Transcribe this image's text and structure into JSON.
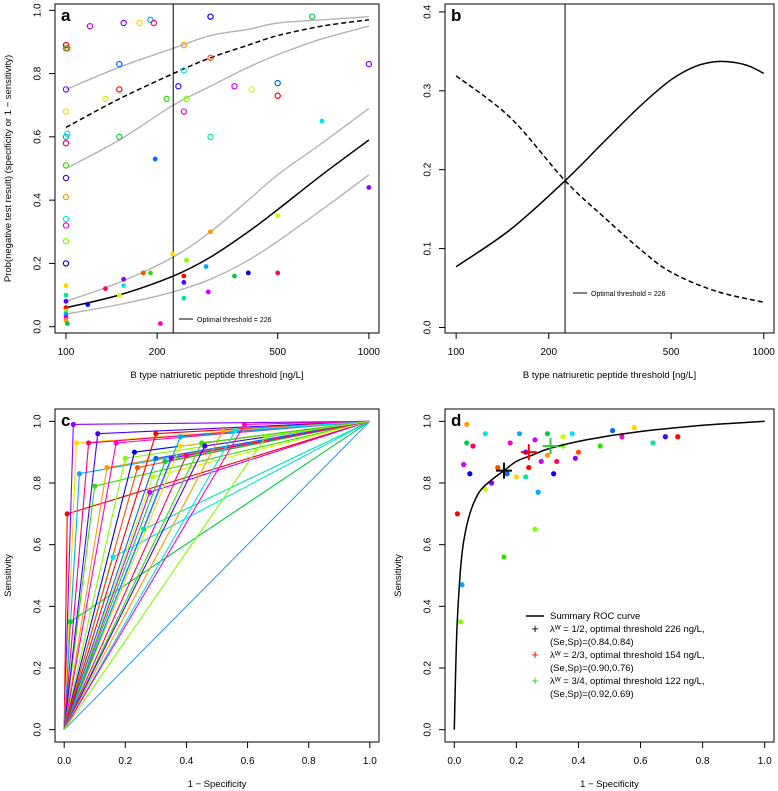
{
  "colors": {
    "axis": "#000000",
    "gray_band": "#b3b3b3",
    "study_palette": [
      "#ff0000",
      "#ff4d00",
      "#ff9900",
      "#ffd500",
      "#c8ff00",
      "#80ff00",
      "#33dd00",
      "#00cc44",
      "#00e6a0",
      "#00e6e6",
      "#00aaff",
      "#0066ff",
      "#0000ee",
      "#4400ff",
      "#8800ff",
      "#cc00ff",
      "#ff00cc",
      "#ff0066"
    ]
  },
  "chart_data": [
    {
      "id": "a",
      "type": "scatter",
      "panel_letter": "a",
      "xlabel": "B type natriuretic peptide threshold [ng/L]",
      "ylabel": "Prob(negative test result) (specificity or 1 − sensitivity)",
      "xscale": "log",
      "xlim": [
        92,
        1080
      ],
      "ylim": [
        -0.02,
        1.02
      ],
      "xticks": [
        100,
        200,
        500,
        1000
      ],
      "xtick_labels": [
        "100",
        "200",
        "500",
        "1000"
      ],
      "yticks": [
        0.0,
        0.2,
        0.4,
        0.6,
        0.8,
        1.0
      ],
      "ytick_labels": [
        "0.0",
        "0.2",
        "0.4",
        "0.6",
        "0.8",
        "1.0"
      ],
      "vline_x": 226,
      "legend_text": "Optimal threshold = 226",
      "legend_position": "bottom-right",
      "curves": {
        "specificity_mean": {
          "x": [
            100,
            150,
            226,
            300,
            400,
            500,
            700,
            1000
          ],
          "y": [
            0.63,
            0.72,
            0.8,
            0.85,
            0.89,
            0.92,
            0.95,
            0.97
          ]
        },
        "specificity_upper": {
          "x": [
            100,
            150,
            226,
            300,
            400,
            500,
            700,
            1000
          ],
          "y": [
            0.75,
            0.82,
            0.88,
            0.92,
            0.94,
            0.96,
            0.97,
            0.98
          ]
        },
        "specificity_lower": {
          "x": [
            100,
            150,
            226,
            300,
            400,
            500,
            700,
            1000
          ],
          "y": [
            0.5,
            0.59,
            0.7,
            0.76,
            0.82,
            0.86,
            0.91,
            0.95
          ]
        },
        "sensitivity_mean": {
          "x": [
            100,
            150,
            226,
            300,
            400,
            500,
            700,
            1000
          ],
          "y": [
            0.06,
            0.1,
            0.16,
            0.22,
            0.3,
            0.37,
            0.48,
            0.59
          ]
        },
        "sensitivity_upper": {
          "x": [
            100,
            150,
            226,
            300,
            400,
            500,
            700,
            1000
          ],
          "y": [
            0.08,
            0.14,
            0.22,
            0.3,
            0.4,
            0.48,
            0.58,
            0.69
          ]
        },
        "sensitivity_lower": {
          "x": [
            100,
            150,
            226,
            300,
            400,
            500,
            700,
            1000
          ],
          "y": [
            0.04,
            0.07,
            0.11,
            0.15,
            0.21,
            0.27,
            0.37,
            0.48
          ]
        }
      },
      "open_points": [
        [
          100,
          0.89
        ],
        [
          100,
          0.88
        ],
        [
          100,
          0.75
        ],
        [
          100,
          0.68
        ],
        [
          100,
          0.6
        ],
        [
          100,
          0.58
        ],
        [
          100,
          0.51
        ],
        [
          100,
          0.47
        ],
        [
          100,
          0.41
        ],
        [
          100,
          0.34
        ],
        [
          100,
          0.32
        ],
        [
          100,
          0.27
        ],
        [
          100,
          0.2
        ],
        [
          101,
          0.88
        ],
        [
          101,
          0.61
        ],
        [
          120,
          0.95
        ],
        [
          135,
          0.72
        ],
        [
          150,
          0.83
        ],
        [
          150,
          0.75
        ],
        [
          150,
          0.6
        ],
        [
          155,
          0.96
        ],
        [
          175,
          0.96
        ],
        [
          190,
          0.97
        ],
        [
          195,
          0.96
        ],
        [
          215,
          0.72
        ],
        [
          235,
          0.76
        ],
        [
          245,
          0.89
        ],
        [
          245,
          0.81
        ],
        [
          245,
          0.68
        ],
        [
          250,
          0.72
        ],
        [
          300,
          0.98
        ],
        [
          300,
          0.85
        ],
        [
          300,
          0.6
        ],
        [
          360,
          0.76
        ],
        [
          410,
          0.75
        ],
        [
          500,
          0.77
        ],
        [
          500,
          0.73
        ],
        [
          650,
          0.98
        ],
        [
          1000,
          0.83
        ]
      ],
      "filled_points": [
        [
          100,
          0.13
        ],
        [
          100,
          0.1
        ],
        [
          100,
          0.08
        ],
        [
          100,
          0.06
        ],
        [
          100,
          0.05
        ],
        [
          100,
          0.04
        ],
        [
          100,
          0.03
        ],
        [
          100,
          0.02
        ],
        [
          101,
          0.01
        ],
        [
          118,
          0.07
        ],
        [
          135,
          0.12
        ],
        [
          150,
          0.1
        ],
        [
          155,
          0.13
        ],
        [
          155,
          0.15
        ],
        [
          180,
          0.17
        ],
        [
          190,
          0.17
        ],
        [
          197,
          0.53
        ],
        [
          205,
          0.01
        ],
        [
          225,
          0.23
        ],
        [
          245,
          0.09
        ],
        [
          245,
          0.14
        ],
        [
          245,
          0.16
        ],
        [
          250,
          0.21
        ],
        [
          290,
          0.19
        ],
        [
          295,
          0.11
        ],
        [
          300,
          0.3
        ],
        [
          360,
          0.16
        ],
        [
          400,
          0.17
        ],
        [
          500,
          0.17
        ],
        [
          500,
          0.35
        ],
        [
          700,
          0.65
        ],
        [
          1000,
          0.44
        ]
      ]
    },
    {
      "id": "b",
      "type": "line",
      "panel_letter": "b",
      "xlabel": "B type natriuretic peptide threshold [ng/L]",
      "ylabel": "",
      "xscale": "log",
      "xlim": [
        92,
        1080
      ],
      "ylim": [
        -0.007,
        0.41
      ],
      "xticks": [
        100,
        200,
        500,
        1000
      ],
      "xtick_labels": [
        "100",
        "200",
        "500",
        "1000"
      ],
      "yticks": [
        0.0,
        0.1,
        0.2,
        0.3,
        0.4
      ],
      "ytick_labels": [
        "0.0",
        "0.1",
        "0.2",
        "0.3",
        "0.4"
      ],
      "vline_x": 226,
      "legend_text": "Optimal threshold = 226",
      "legend_position": "bottom-center",
      "series": [
        {
          "name": "solid",
          "x": [
            100,
            150,
            226,
            300,
            400,
            500,
            600,
            700,
            800,
            900,
            1000
          ],
          "y": [
            0.077,
            0.124,
            0.186,
            0.234,
            0.282,
            0.314,
            0.331,
            0.337,
            0.336,
            0.331,
            0.322
          ]
        },
        {
          "name": "dashed",
          "x": [
            100,
            150,
            226,
            300,
            400,
            500,
            700,
            1000
          ],
          "y": [
            0.319,
            0.266,
            0.186,
            0.141,
            0.098,
            0.07,
            0.046,
            0.032
          ]
        }
      ]
    },
    {
      "id": "c",
      "type": "line",
      "panel_letter": "c",
      "xlabel": "1 − Specificity",
      "ylabel": "Sensitivity",
      "xlim": [
        -0.03,
        1.03
      ],
      "ylim": [
        -0.04,
        1.04
      ],
      "xticks": [
        0.0,
        0.2,
        0.4,
        0.6,
        0.8,
        1.0
      ],
      "xtick_labels": [
        "0.0",
        "0.2",
        "0.4",
        "0.6",
        "0.8",
        "1.0"
      ],
      "yticks": [
        0.0,
        0.2,
        0.4,
        0.6,
        0.8,
        1.0
      ],
      "ytick_labels": [
        "0.0",
        "0.2",
        "0.4",
        "0.6",
        "0.8",
        "1.0"
      ],
      "roc_points": [
        [
          0.01,
          0.7
        ],
        [
          0.02,
          0.35
        ],
        [
          0.03,
          0.99
        ],
        [
          0.04,
          0.93
        ],
        [
          0.05,
          0.83
        ],
        [
          0.08,
          0.93
        ],
        [
          0.1,
          0.79
        ],
        [
          0.11,
          0.96
        ],
        [
          0.14,
          0.85
        ],
        [
          0.16,
          0.56
        ],
        [
          0.17,
          0.93
        ],
        [
          0.2,
          0.88
        ],
        [
          0.23,
          0.9
        ],
        [
          0.24,
          0.85
        ],
        [
          0.26,
          0.65
        ],
        [
          0.28,
          0.77
        ],
        [
          0.29,
          0.82
        ],
        [
          0.3,
          0.88
        ],
        [
          0.3,
          0.96
        ],
        [
          0.33,
          0.87
        ],
        [
          0.35,
          0.88
        ],
        [
          0.38,
          0.92
        ],
        [
          0.38,
          0.95
        ],
        [
          0.4,
          0.89
        ],
        [
          0.45,
          0.93
        ],
        [
          0.46,
          0.92
        ],
        [
          0.52,
          0.97
        ],
        [
          0.56,
          0.97
        ],
        [
          0.59,
          0.99
        ],
        [
          0.66,
          0.95
        ]
      ],
      "extra_lines": [
        [
          [
            0,
            0
          ],
          [
            1,
            1
          ]
        ]
      ]
    },
    {
      "id": "d",
      "type": "scatter",
      "panel_letter": "d",
      "xlabel": "1 − Specificity",
      "ylabel": "Sensitivity",
      "xlim": [
        -0.03,
        1.03
      ],
      "ylim": [
        -0.04,
        1.04
      ],
      "xticks": [
        0.0,
        0.2,
        0.4,
        0.6,
        0.8,
        1.0
      ],
      "xtick_labels": [
        "0.0",
        "0.2",
        "0.4",
        "0.6",
        "0.8",
        "1.0"
      ],
      "yticks": [
        0.0,
        0.2,
        0.4,
        0.6,
        0.8,
        1.0
      ],
      "ytick_labels": [
        "0.0",
        "0.2",
        "0.4",
        "0.6",
        "0.8",
        "1.0"
      ],
      "sroc_curve": {
        "x": [
          0.0,
          0.005,
          0.01,
          0.02,
          0.03,
          0.05,
          0.08,
          0.12,
          0.16,
          0.2,
          0.25,
          0.3,
          0.4,
          0.5,
          0.6,
          0.7,
          0.8,
          0.9,
          1.0
        ],
        "y": [
          0.0,
          0.22,
          0.36,
          0.52,
          0.61,
          0.7,
          0.77,
          0.81,
          0.84,
          0.87,
          0.89,
          0.91,
          0.935,
          0.953,
          0.967,
          0.978,
          0.987,
          0.994,
          1.0
        ]
      },
      "points": [
        [
          0.01,
          0.7
        ],
        [
          0.02,
          0.35
        ],
        [
          0.025,
          0.47
        ],
        [
          0.03,
          0.86
        ],
        [
          0.04,
          0.99
        ],
        [
          0.04,
          0.93
        ],
        [
          0.05,
          0.83
        ],
        [
          0.06,
          0.92
        ],
        [
          0.1,
          0.78
        ],
        [
          0.1,
          0.96
        ],
        [
          0.12,
          0.8
        ],
        [
          0.14,
          0.85
        ],
        [
          0.16,
          0.56
        ],
        [
          0.17,
          0.83
        ],
        [
          0.18,
          0.93
        ],
        [
          0.2,
          0.82
        ],
        [
          0.23,
          0.82
        ],
        [
          0.23,
          0.9
        ],
        [
          0.24,
          0.85
        ],
        [
          0.26,
          0.65
        ],
        [
          0.27,
          0.77
        ],
        [
          0.28,
          0.87
        ],
        [
          0.3,
          0.89
        ],
        [
          0.3,
          0.96
        ],
        [
          0.32,
          0.83
        ],
        [
          0.33,
          0.87
        ],
        [
          0.35,
          0.95
        ],
        [
          0.38,
          0.96
        ],
        [
          0.39,
          0.88
        ],
        [
          0.4,
          0.9
        ],
        [
          0.47,
          0.92
        ],
        [
          0.51,
          0.97
        ],
        [
          0.54,
          0.95
        ],
        [
          0.58,
          0.98
        ],
        [
          0.64,
          0.93
        ],
        [
          0.68,
          0.95
        ],
        [
          0.72,
          0.95
        ],
        [
          0.35,
          0.92
        ],
        [
          0.21,
          0.96
        ],
        [
          0.26,
          0.94
        ]
      ],
      "markers": [
        {
          "x": 0.16,
          "y": 0.84,
          "color": "#000000"
        },
        {
          "x": 0.24,
          "y": 0.9,
          "color": "#ff0000"
        },
        {
          "x": 0.31,
          "y": 0.92,
          "color": "#33cc33"
        }
      ],
      "legend": [
        {
          "label": "Summary ROC curve",
          "color": "#000000",
          "kind": "line"
        },
        {
          "label": "λᵂ = 1/2, optimal threshold 226 ng/L,",
          "sub": "(Se,Sp)=(0.84,0.84)",
          "color": "#000000",
          "kind": "plus"
        },
        {
          "label": "λᵂ = 2/3, optimal threshold 154 ng/L,",
          "sub": "(Se,Sp)=(0.90,0.76)",
          "color": "#ff0000",
          "kind": "plus"
        },
        {
          "label": "λᵂ = 3/4, optimal threshold 122 ng/L,",
          "sub": "(Se,Sp)=(0.92,0.69)",
          "color": "#33cc33",
          "kind": "plus"
        }
      ]
    }
  ]
}
